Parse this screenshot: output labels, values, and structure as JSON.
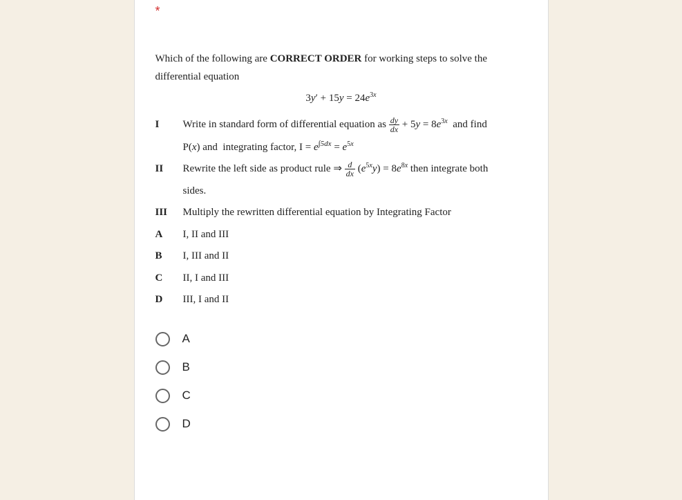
{
  "required_marker": "*",
  "question_intro": "Which of the following are ",
  "question_bold": "CORRECT ORDER",
  "question_rest": " for working steps to solve the differential equation",
  "main_equation": "3y′ + 15y = 24e³ˣ",
  "steps": {
    "i_label": "I",
    "i_text_a": "Write in standard form of differential equation as ",
    "i_text_b": " + 5y = 8e³ˣ  and find",
    "i_text_c": "P(x) and  integrating factor, I = e",
    "i_text_d": " = e⁵ˣ",
    "frac_num": "dy",
    "frac_den": "dx",
    "ii_label": "II",
    "ii_text_a": "Rewrite the left side as product rule ⇒ ",
    "ii_text_b": "(e⁵ˣy) = 8e⁸ˣ then integrate both",
    "ii_text_c": "sides.",
    "frac2_num": "d",
    "frac2_den": "dx",
    "iii_label": "III",
    "iii_text": "Multiply the rewritten differential equation by Integrating Factor"
  },
  "answers": {
    "a_label": "A",
    "a_text": "I, II and III",
    "b_label": "B",
    "b_text": "I, III and II",
    "c_label": "C",
    "c_text": "II, I and III",
    "d_label": "D",
    "d_text": "III, I and II"
  },
  "options": {
    "a": "A",
    "b": "B",
    "c": "C",
    "d": "D"
  },
  "integral_exp": "∫5dx"
}
